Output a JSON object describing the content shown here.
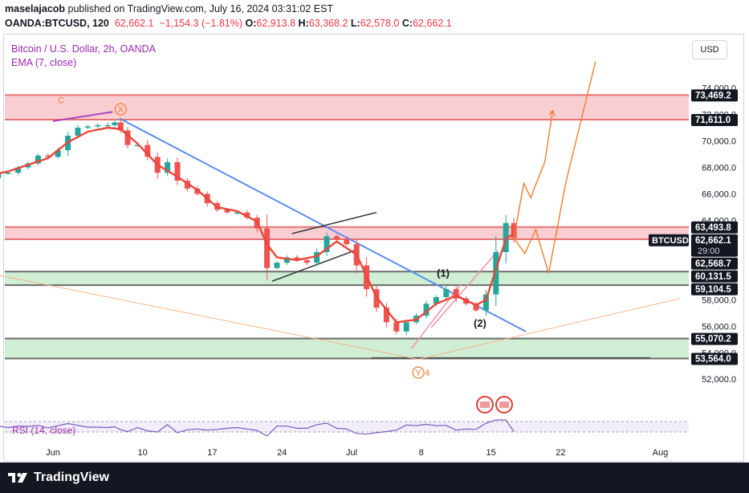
{
  "header": {
    "line1": {
      "user": "maselajacob",
      "rest": " published on TradingView.com, July 16, 2024 03:31:02 EST"
    },
    "line2": {
      "symbol": "OANDA:BTCUSD, 120",
      "last": "62,662.1",
      "change": "−1,154.3 (−1.81%)",
      "o_label": "O:",
      "o": "62,913.8",
      "h_label": "H:",
      "h": "63,368.2",
      "l_label": "L:",
      "l": "62,578.0",
      "c_label": "C:",
      "c": "62,662.1"
    }
  },
  "legend": {
    "title": "Bitcoin / U.S. Dollar, 2h, OANDA",
    "ema": "EMA (7, close)",
    "rsi": "RSI (14, close)"
  },
  "currency_button": "USD",
  "colors": {
    "up": "#26a69a",
    "down": "#ef5350",
    "ema": "#e8463c",
    "trend": "#5b8def",
    "resistance_zone": "#f8c6cb",
    "support_zone": "#c8ebcb",
    "projection": "#f57c2f",
    "label_bg": "#131722",
    "footer": "#131722"
  },
  "chart_data": {
    "type": "candlestick",
    "symbol": "BTCUSD",
    "timeframe": "2h",
    "ylim": [
      50800,
      75800
    ],
    "x_tick_labels": [
      {
        "t": 0,
        "label": "Jun"
      },
      {
        "t": 9,
        "label": "10"
      },
      {
        "t": 16,
        "label": "17"
      },
      {
        "t": 23,
        "label": "24"
      },
      {
        "t": 30,
        "label": "Jul"
      },
      {
        "t": 37,
        "label": "8"
      },
      {
        "t": 44,
        "label": "15"
      },
      {
        "t": 51,
        "label": "22"
      },
      {
        "t": 61,
        "label": "Aug"
      }
    ],
    "y_tick_labels": [
      {
        "value": 52000,
        "label": "52,000.0"
      },
      {
        "value": 54000,
        "label": "54,000.0"
      },
      {
        "value": 56000,
        "label": "56,000.0"
      },
      {
        "value": 58000,
        "label": "58,000.0"
      },
      {
        "value": 64000,
        "label": "64,000.0"
      },
      {
        "value": 66000,
        "label": "66,000.0"
      },
      {
        "value": 68000,
        "label": "68,000.0"
      },
      {
        "value": 70000,
        "label": "70,000.0"
      },
      {
        "value": 72000,
        "label": "72,000.0"
      },
      {
        "value": 74000,
        "label": "74,000.0"
      }
    ],
    "price_labels": [
      {
        "value": 73469.2,
        "label": "73,469.2",
        "kind": "level"
      },
      {
        "value": 71611.0,
        "label": "71,611.0",
        "kind": "level"
      },
      {
        "value": 63493.8,
        "label": "63,493.8",
        "kind": "level"
      },
      {
        "value": 62662.1,
        "label": "62,662.1",
        "kind": "last",
        "countdown": "29:00"
      },
      {
        "value": 62568.7,
        "label": "62,568.7",
        "kind": "level"
      },
      {
        "value": 60131.5,
        "label": "60,131.5",
        "kind": "level"
      },
      {
        "value": 59104.5,
        "label": "59,104.5",
        "kind": "level"
      },
      {
        "value": 55070.2,
        "label": "55,070.2",
        "kind": "level"
      },
      {
        "value": 53564.0,
        "label": "53,564.0",
        "kind": "level"
      }
    ],
    "last_symbol_tag": "BTCUSD",
    "zones": [
      {
        "kind": "resistance",
        "from": 71611.0,
        "to": 73469.2
      },
      {
        "kind": "resistance",
        "from": 62568.7,
        "to": 63493.8
      },
      {
        "kind": "support",
        "from": 59104.5,
        "to": 60131.5
      },
      {
        "kind": "support",
        "from": 53564.0,
        "to": 55070.2
      }
    ],
    "close_path": [
      {
        "t": -6.4,
        "v": 67200
      },
      {
        "t": -5.5,
        "v": 67600
      },
      {
        "t": -4.5,
        "v": 67600
      },
      {
        "t": -3.5,
        "v": 68000
      },
      {
        "t": -2.5,
        "v": 68300
      },
      {
        "t": -1.5,
        "v": 68900
      },
      {
        "t": -0.5,
        "v": 68800
      },
      {
        "t": 0.5,
        "v": 69300
      },
      {
        "t": 1.5,
        "v": 70400
      },
      {
        "t": 2.5,
        "v": 71000
      },
      {
        "t": 3.5,
        "v": 71100
      },
      {
        "t": 4.5,
        "v": 71200
      },
      {
        "t": 5.5,
        "v": 71200
      },
      {
        "t": 6.2,
        "v": 71400
      },
      {
        "t": 6.8,
        "v": 70800
      },
      {
        "t": 7.5,
        "v": 69700
      },
      {
        "t": 8.5,
        "v": 69700
      },
      {
        "t": 9.5,
        "v": 68800
      },
      {
        "t": 10.5,
        "v": 67600
      },
      {
        "t": 11.5,
        "v": 68400
      },
      {
        "t": 12.5,
        "v": 67000
      },
      {
        "t": 13.5,
        "v": 66400
      },
      {
        "t": 14.5,
        "v": 66000
      },
      {
        "t": 15.5,
        "v": 65300
      },
      {
        "t": 16.5,
        "v": 64800
      },
      {
        "t": 17.5,
        "v": 64600
      },
      {
        "t": 18.5,
        "v": 64600
      },
      {
        "t": 19.5,
        "v": 64200
      },
      {
        "t": 20.5,
        "v": 63400
      },
      {
        "t": 21.5,
        "v": 60400
      },
      {
        "t": 22.5,
        "v": 60800
      },
      {
        "t": 23.5,
        "v": 61200
      },
      {
        "t": 24.5,
        "v": 61000
      },
      {
        "t": 25.5,
        "v": 60800
      },
      {
        "t": 26.5,
        "v": 61600
      },
      {
        "t": 27.5,
        "v": 62800
      },
      {
        "t": 28.5,
        "v": 62600
      },
      {
        "t": 29.5,
        "v": 62200
      },
      {
        "t": 30.5,
        "v": 60600
      },
      {
        "t": 31.5,
        "v": 58800
      },
      {
        "t": 32.5,
        "v": 57400
      },
      {
        "t": 33.5,
        "v": 56300
      },
      {
        "t": 34.5,
        "v": 55600
      },
      {
        "t": 35.5,
        "v": 56300
      },
      {
        "t": 36.5,
        "v": 56800
      },
      {
        "t": 37.5,
        "v": 57700
      },
      {
        "t": 38.5,
        "v": 58200
      },
      {
        "t": 39.5,
        "v": 58800
      },
      {
        "t": 40.5,
        "v": 58100
      },
      {
        "t": 41.5,
        "v": 57700
      },
      {
        "t": 42.5,
        "v": 57200
      },
      {
        "t": 43.5,
        "v": 58400
      },
      {
        "t": 44.5,
        "v": 61600
      },
      {
        "t": 45.5,
        "v": 63800
      },
      {
        "t": 46.3,
        "v": 62660
      }
    ],
    "ema_path": [
      {
        "t": -6.4,
        "v": 67400
      },
      {
        "t": -4.5,
        "v": 67700
      },
      {
        "t": -2.5,
        "v": 68200
      },
      {
        "t": -0.5,
        "v": 68700
      },
      {
        "t": 1.5,
        "v": 69900
      },
      {
        "t": 3.5,
        "v": 70700
      },
      {
        "t": 5.5,
        "v": 71000
      },
      {
        "t": 6.8,
        "v": 70900
      },
      {
        "t": 8.5,
        "v": 69800
      },
      {
        "t": 10.5,
        "v": 68200
      },
      {
        "t": 12.5,
        "v": 67300
      },
      {
        "t": 14.5,
        "v": 66300
      },
      {
        "t": 16.5,
        "v": 65000
      },
      {
        "t": 18.5,
        "v": 64700
      },
      {
        "t": 20.5,
        "v": 63900
      },
      {
        "t": 21.5,
        "v": 62200
      },
      {
        "t": 22.5,
        "v": 61200
      },
      {
        "t": 24.5,
        "v": 61000
      },
      {
        "t": 26.5,
        "v": 61300
      },
      {
        "t": 28.5,
        "v": 62400
      },
      {
        "t": 30.5,
        "v": 61400
      },
      {
        "t": 32.5,
        "v": 58200
      },
      {
        "t": 34.5,
        "v": 56300
      },
      {
        "t": 36.5,
        "v": 56500
      },
      {
        "t": 38.5,
        "v": 57700
      },
      {
        "t": 40.5,
        "v": 58300
      },
      {
        "t": 42.5,
        "v": 57600
      },
      {
        "t": 43.5,
        "v": 58000
      },
      {
        "t": 44.5,
        "v": 60300
      },
      {
        "t": 45.5,
        "v": 62600
      },
      {
        "t": 46.3,
        "v": 63000
      }
    ],
    "lines": [
      {
        "kind": "trend",
        "from": {
          "t": 6.7,
          "v": 71700
        },
        "to": {
          "t": 47.5,
          "v": 55600
        }
      },
      {
        "kind": "channel",
        "from": {
          "t": 22.0,
          "v": 59400
        },
        "to": {
          "t": 30.6,
          "v": 61800
        }
      },
      {
        "kind": "channel",
        "from": {
          "t": 24.0,
          "v": 63000
        },
        "to": {
          "t": 32.5,
          "v": 64600
        }
      },
      {
        "kind": "baseline",
        "from": {
          "t": 32.0,
          "v": 53600
        },
        "to": {
          "t": 60.0,
          "v": 53600
        }
      },
      {
        "kind": "purple",
        "from": {
          "t": 0.0,
          "v": 71500
        },
        "to": {
          "t": 6.0,
          "v": 72200
        }
      },
      {
        "kind": "fib",
        "from": {
          "t": -6.4,
          "v": 60000
        },
        "to": {
          "t": 36.7,
          "v": 53500
        }
      },
      {
        "kind": "fib",
        "from": {
          "t": 36.7,
          "v": 53500
        },
        "to": {
          "t": 63.0,
          "v": 58100
        }
      },
      {
        "kind": "pink",
        "from": {
          "t": 36.0,
          "v": 54300
        },
        "to": {
          "t": 41.0,
          "v": 59200
        }
      },
      {
        "kind": "pink",
        "from": {
          "t": 38.0,
          "v": 55900
        },
        "to": {
          "t": 44.7,
          "v": 61700
        }
      }
    ],
    "projections": [
      [
        {
          "t": 46.3,
          "v": 62660
        },
        {
          "t": 47.3,
          "v": 66800
        },
        {
          "t": 48.0,
          "v": 65700
        },
        {
          "t": 48.6,
          "v": 66900
        },
        {
          "t": 49.4,
          "v": 68400
        },
        {
          "t": 50.2,
          "v": 72300
        }
      ],
      [
        {
          "t": 46.3,
          "v": 62660
        },
        {
          "t": 47.4,
          "v": 61500
        },
        {
          "t": 48.5,
          "v": 63300
        },
        {
          "t": 49.8,
          "v": 60000
        },
        {
          "t": 51.5,
          "v": 66800
        },
        {
          "t": 54.5,
          "v": 76000
        }
      ]
    ],
    "annotations": [
      {
        "text": "C",
        "t": 0.8,
        "v": 73100,
        "style": "orange"
      },
      {
        "text": "X",
        "t": 6.8,
        "v": 72400,
        "style": "circle"
      },
      {
        "text": "(1)",
        "t": 39.2,
        "v": 60000,
        "style": "dark"
      },
      {
        "text": "(2)",
        "t": 42.9,
        "v": 56200,
        "style": "dark"
      },
      {
        "text": "Y",
        "t": 36.7,
        "v": 52500,
        "style": "circle"
      },
      {
        "text": "4",
        "t": 37.6,
        "v": 52500,
        "style": "orange"
      }
    ],
    "rsi": {
      "name": "RSI (14, close)",
      "upper": 70,
      "lower": 30
    }
  },
  "footer": {
    "brand": "TradingView"
  }
}
